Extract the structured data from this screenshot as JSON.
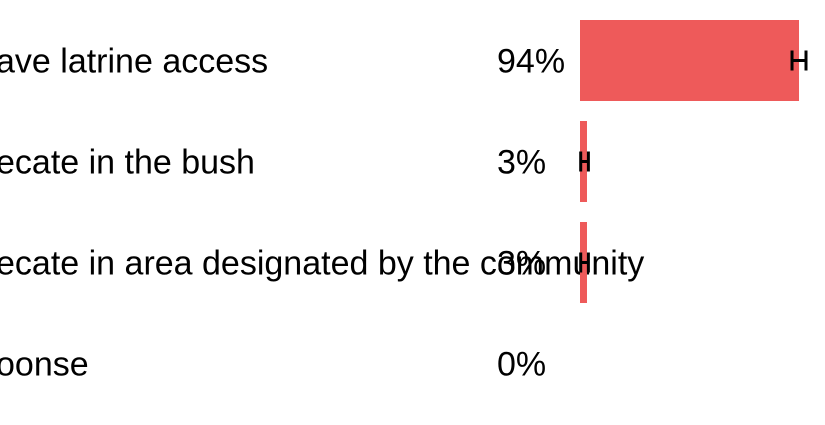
{
  "chart_data": {
    "type": "bar",
    "orientation": "horizontal",
    "title": "",
    "xlabel": "",
    "ylabel": "",
    "categories": [
      "ave latrine access",
      "ecate in the bush",
      "ecate in area designated by the community",
      "oonse"
    ],
    "value_labels": [
      "94%",
      "3%",
      "3%",
      "0%"
    ],
    "values": [
      94,
      3,
      3,
      0
    ],
    "error_low": [
      91,
      0.3,
      0.3,
      0
    ],
    "error_high": [
      97,
      3.6,
      3.6,
      0
    ],
    "xlim": [
      0,
      100
    ],
    "grid": false,
    "legend": "none",
    "bar_color": "#ee5a5a",
    "error_color": "#000000"
  }
}
